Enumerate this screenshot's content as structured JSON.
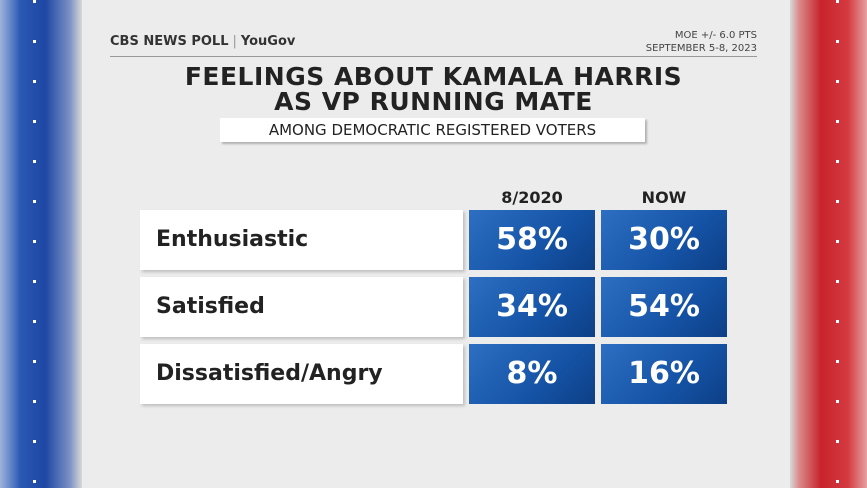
{
  "header": {
    "brand": "CBS NEWS POLL",
    "partner": "YouGov",
    "moe": "MOE +/- 6.0 PTS",
    "dates": "SEPTEMBER 5-8, 2023"
  },
  "title": [
    "FEELINGS ABOUT KAMALA HARRIS",
    "AS VP RUNNING MATE"
  ],
  "subtitle": "AMONG DEMOCRATIC REGISTERED VOTERS",
  "table": {
    "columns": [
      "8/2020",
      "NOW"
    ],
    "rows": [
      {
        "label": "Enthusiastic",
        "values": [
          "58%",
          "30%"
        ]
      },
      {
        "label": "Satisfied",
        "values": [
          "34%",
          "54%"
        ]
      },
      {
        "label": "Dissatisfied/Angry",
        "values": [
          "8%",
          "16%"
        ]
      }
    ]
  }
}
